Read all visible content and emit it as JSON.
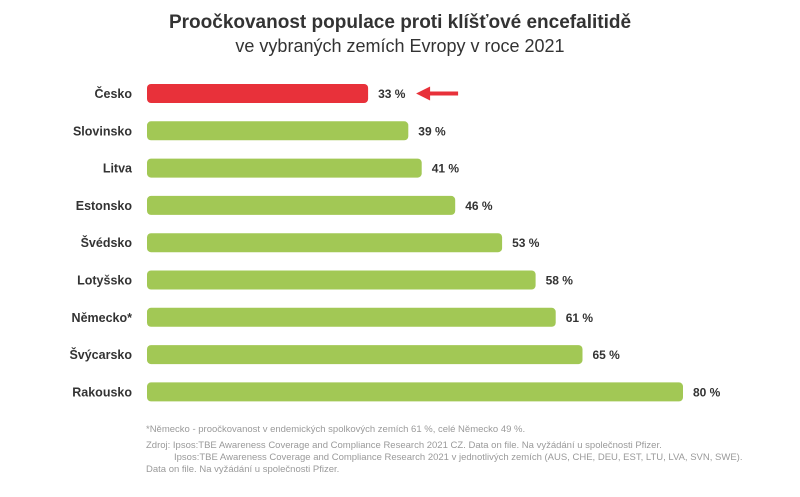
{
  "colors": {
    "highlight": "#e8313a",
    "bar": "#a2c855",
    "arrow": "#e8313a"
  },
  "chart_data": {
    "type": "bar",
    "orientation": "horizontal",
    "title": "Proočkovanost populace proti klíšťové encefalitidě",
    "subtitle": "ve vybraných zemích Evropy v roce 2021",
    "categories": [
      "Česko",
      "Slovinsko",
      "Litva",
      "Estonsko",
      "Švédsko",
      "Lotyšsko",
      "Německo*",
      "Švýcarsko",
      "Rakousko"
    ],
    "values": [
      33,
      39,
      41,
      46,
      53,
      58,
      61,
      65,
      80
    ],
    "value_labels": [
      "33 %",
      "39 %",
      "41 %",
      "46 %",
      "53 %",
      "58 %",
      "61 %",
      "65 %",
      "80 %"
    ],
    "highlight_index": 0,
    "xlim": [
      0,
      100
    ],
    "grid": false,
    "legend": "none"
  },
  "footnotes": {
    "note": "*Německo - proočkovanost v endemických spolkových zemích 61 %, celé Německo 49 %.",
    "source_line1": "Zdroj: Ipsos:TBE Awareness Coverage and Compliance Research 2021 CZ. Data on file. Na vyžádání u společnosti Pfizer.",
    "source_line2": "Ipsos:TBE Awareness Coverage and Compliance Research 2021 v jednotlivých zemích (AUS, CHE, DEU, EST, LTU, LVA, SVN, SWE).",
    "source_line3": "Data on file. Na vyžádání u společnosti Pfizer."
  }
}
